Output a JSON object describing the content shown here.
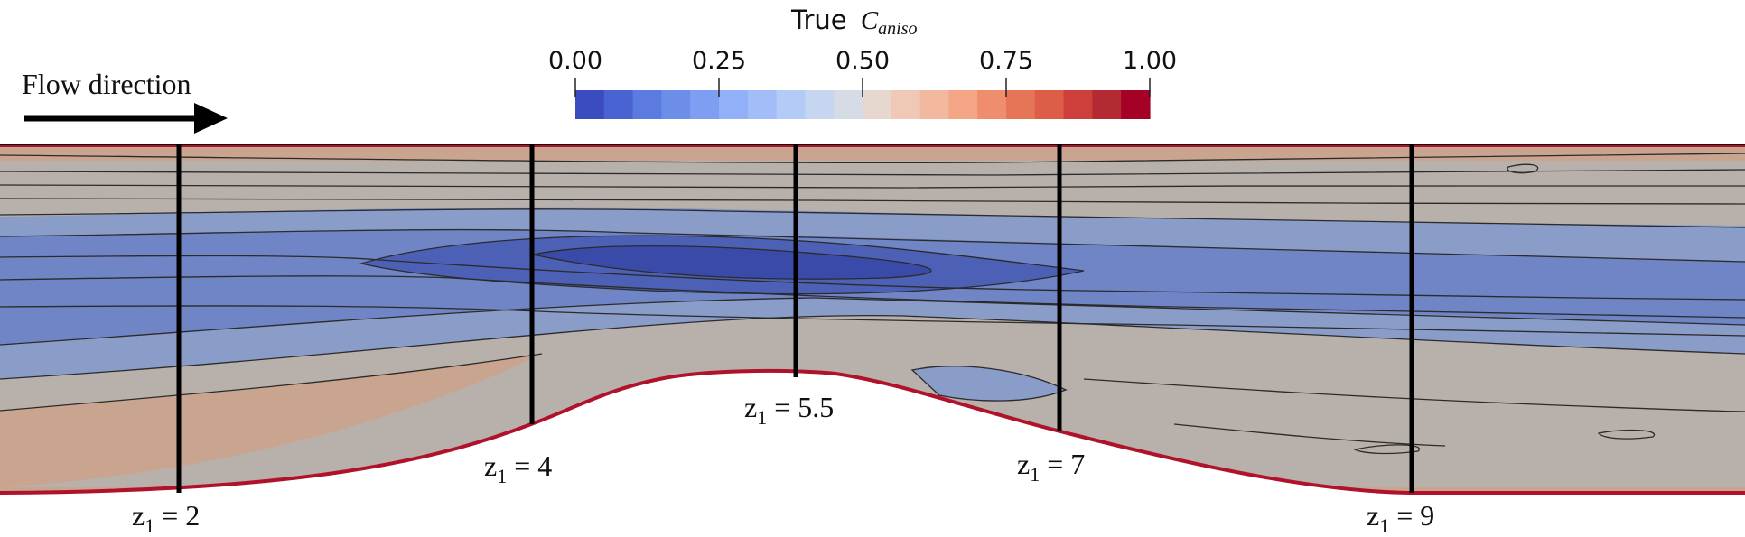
{
  "colorbar": {
    "title_prefix": "True",
    "title_symbol": "C",
    "title_subscript": "aniso",
    "ticks": [
      "0.00",
      "0.25",
      "0.50",
      "0.75",
      "1.00"
    ],
    "range": [
      0,
      1
    ],
    "colors": [
      "#3b4cc0",
      "#4a63d3",
      "#5b7be0",
      "#6c8ee9",
      "#7e9ff1",
      "#91b0f7",
      "#a3bdf8",
      "#b5cbf7",
      "#c6d5f0",
      "#d6dce5",
      "#e6d7cf",
      "#f0c9b6",
      "#f3b99e",
      "#f3a586",
      "#ee8e6e",
      "#e67558",
      "#dc5d48",
      "#cc3f3a",
      "#b32a33",
      "#a50026"
    ]
  },
  "flow": {
    "label": "Flow direction"
  },
  "stations": [
    {
      "name": "z1-2",
      "var": "z",
      "sub": "1",
      "eq": " = 2"
    },
    {
      "name": "z1-4",
      "var": "z",
      "sub": "1",
      "eq": " = 4"
    },
    {
      "name": "z1-5.5",
      "var": "z",
      "sub": "1",
      "eq": " = 5.5"
    },
    {
      "name": "z1-7",
      "var": "z",
      "sub": "1",
      "eq": " = 7"
    },
    {
      "name": "z1-9",
      "var": "z",
      "sub": "1",
      "eq": " = 9"
    }
  ],
  "field_colors": {
    "wall_high": "#b0122b",
    "outer": "#c9a48f",
    "neutral": "#b8b0aa",
    "mid": "#8a9cc8",
    "core": "#6f85c6",
    "deep": "#4c61b6",
    "deepest": "#3a4aa8"
  }
}
